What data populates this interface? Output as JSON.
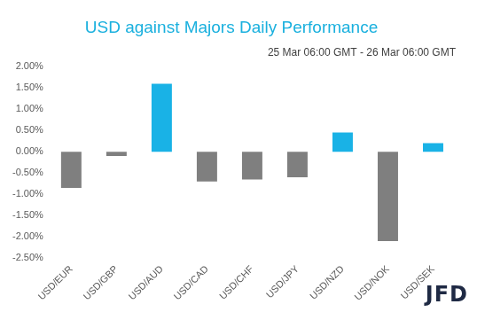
{
  "chart_data": {
    "type": "bar",
    "title": "USD against Majors Daily Performance",
    "subtitle": "25 Mar 06:00 GMT - 26 Mar 06:00 GMT",
    "annotation": "JFD",
    "categories": [
      "USD/EUR",
      "USD/GBP",
      "USD/AUD",
      "USD/CAD",
      "USD/CHF",
      "USD/JPY",
      "USD/NZD",
      "USD/NOK",
      "USD/SEK"
    ],
    "values": [
      -0.85,
      -0.1,
      1.6,
      -0.7,
      -0.65,
      -0.6,
      0.45,
      -2.1,
      0.2
    ],
    "colors": [
      "#7f7f7f",
      "#7f7f7f",
      "#19b2e6",
      "#7f7f7f",
      "#7f7f7f",
      "#7f7f7f",
      "#19b2e6",
      "#7f7f7f",
      "#19b2e6"
    ],
    "ylim": [
      -2.5,
      2
    ],
    "yticks": [
      {
        "value": -2.5,
        "label": "-2.50%"
      },
      {
        "value": -2,
        "label": "-2.00%"
      },
      {
        "value": -1.5,
        "label": "-1.50%"
      },
      {
        "value": -1,
        "label": "-1.00%"
      },
      {
        "value": -0.5,
        "label": "-0.50%"
      },
      {
        "value": 0,
        "label": "0.00%"
      },
      {
        "value": 0.5,
        "label": "0.50%"
      },
      {
        "value": 1,
        "label": "1.00%"
      },
      {
        "value": 1.5,
        "label": "1.50%"
      },
      {
        "value": 2,
        "label": "2.00%"
      }
    ],
    "grid": false,
    "data_labels": false
  }
}
